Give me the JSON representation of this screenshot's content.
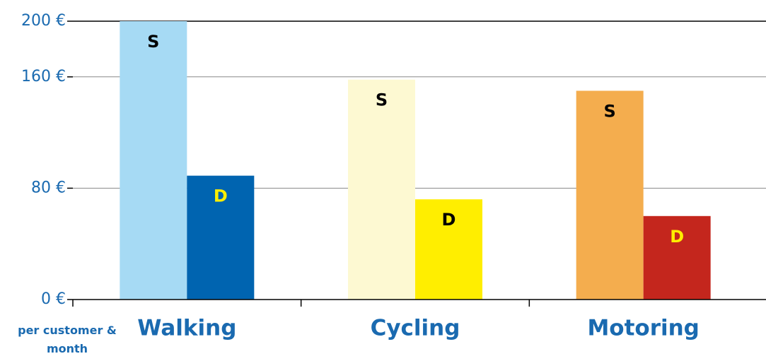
{
  "chart_data": {
    "type": "bar",
    "note": "per customer & month",
    "categories": [
      "Walking",
      "Cycling",
      "Motoring"
    ],
    "series": [
      {
        "name": "S",
        "colors": [
          "#a6daf4",
          "#fdf9d2",
          "#f4ad4e"
        ],
        "label_colors": [
          "#000000",
          "#000000",
          "#000000"
        ],
        "values": [
          200,
          158,
          150
        ]
      },
      {
        "name": "D",
        "colors": [
          "#0064b0",
          "#ffee00",
          "#c4261d"
        ],
        "label_colors": [
          "#ffee00",
          "#000000",
          "#ffee00"
        ],
        "values": [
          89,
          72,
          60
        ]
      }
    ],
    "ylim": [
      0,
      200
    ],
    "yticks": [
      {
        "value": 0,
        "label": "0 €"
      },
      {
        "value": 80,
        "label": "80 €"
      },
      {
        "value": 160,
        "label": "160 €"
      },
      {
        "value": 200,
        "label": "200 €"
      }
    ],
    "grid": true
  }
}
